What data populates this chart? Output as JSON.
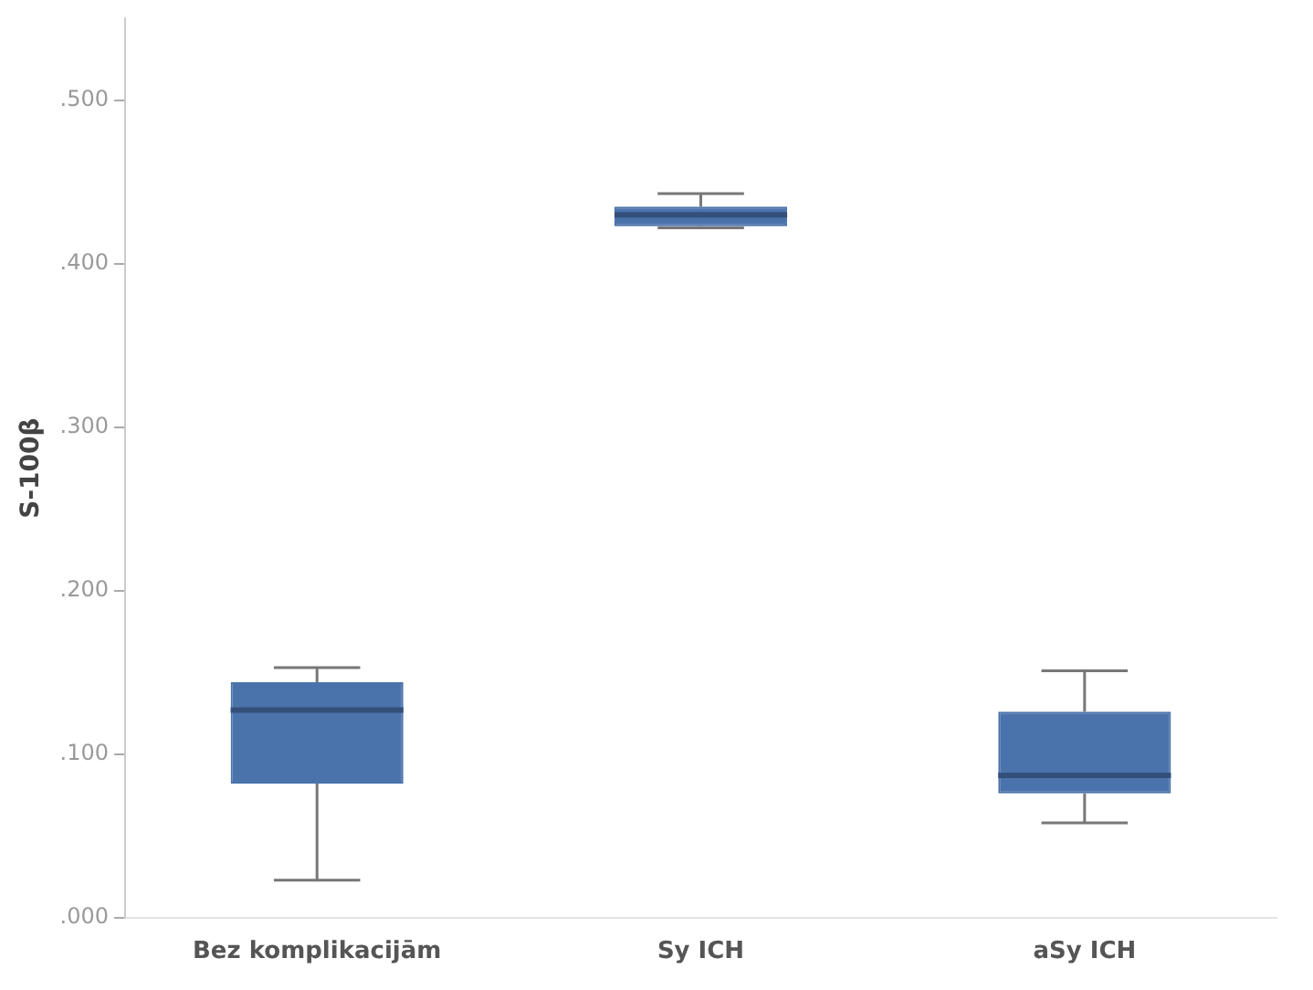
{
  "chart_data": {
    "type": "box",
    "ylabel": "S-100β",
    "categories": [
      "Bez komplikacijām",
      "Sy ICH",
      "aSy ICH"
    ],
    "color": "#4a72ab",
    "boxes": [
      {
        "low": 0.023,
        "q1": 0.082,
        "median": 0.127,
        "q3": 0.144,
        "high": 0.153
      },
      {
        "low": 0.422,
        "q1": 0.423,
        "median": 0.43,
        "q3": 0.435,
        "high": 0.443
      },
      {
        "low": 0.058,
        "q1": 0.076,
        "median": 0.087,
        "q3": 0.126,
        "high": 0.151
      }
    ],
    "ylim": [
      0,
      0.55
    ],
    "yticks": [
      {
        "value": 0,
        "label": ".000"
      },
      {
        "value": 0.1,
        "label": ".100"
      },
      {
        "value": 0.2,
        "label": ".200"
      },
      {
        "value": 0.3,
        "label": ".300"
      },
      {
        "value": 0.4,
        "label": ".400"
      },
      {
        "value": 0.5,
        "label": ".500"
      }
    ],
    "grid": false,
    "legend": false
  }
}
